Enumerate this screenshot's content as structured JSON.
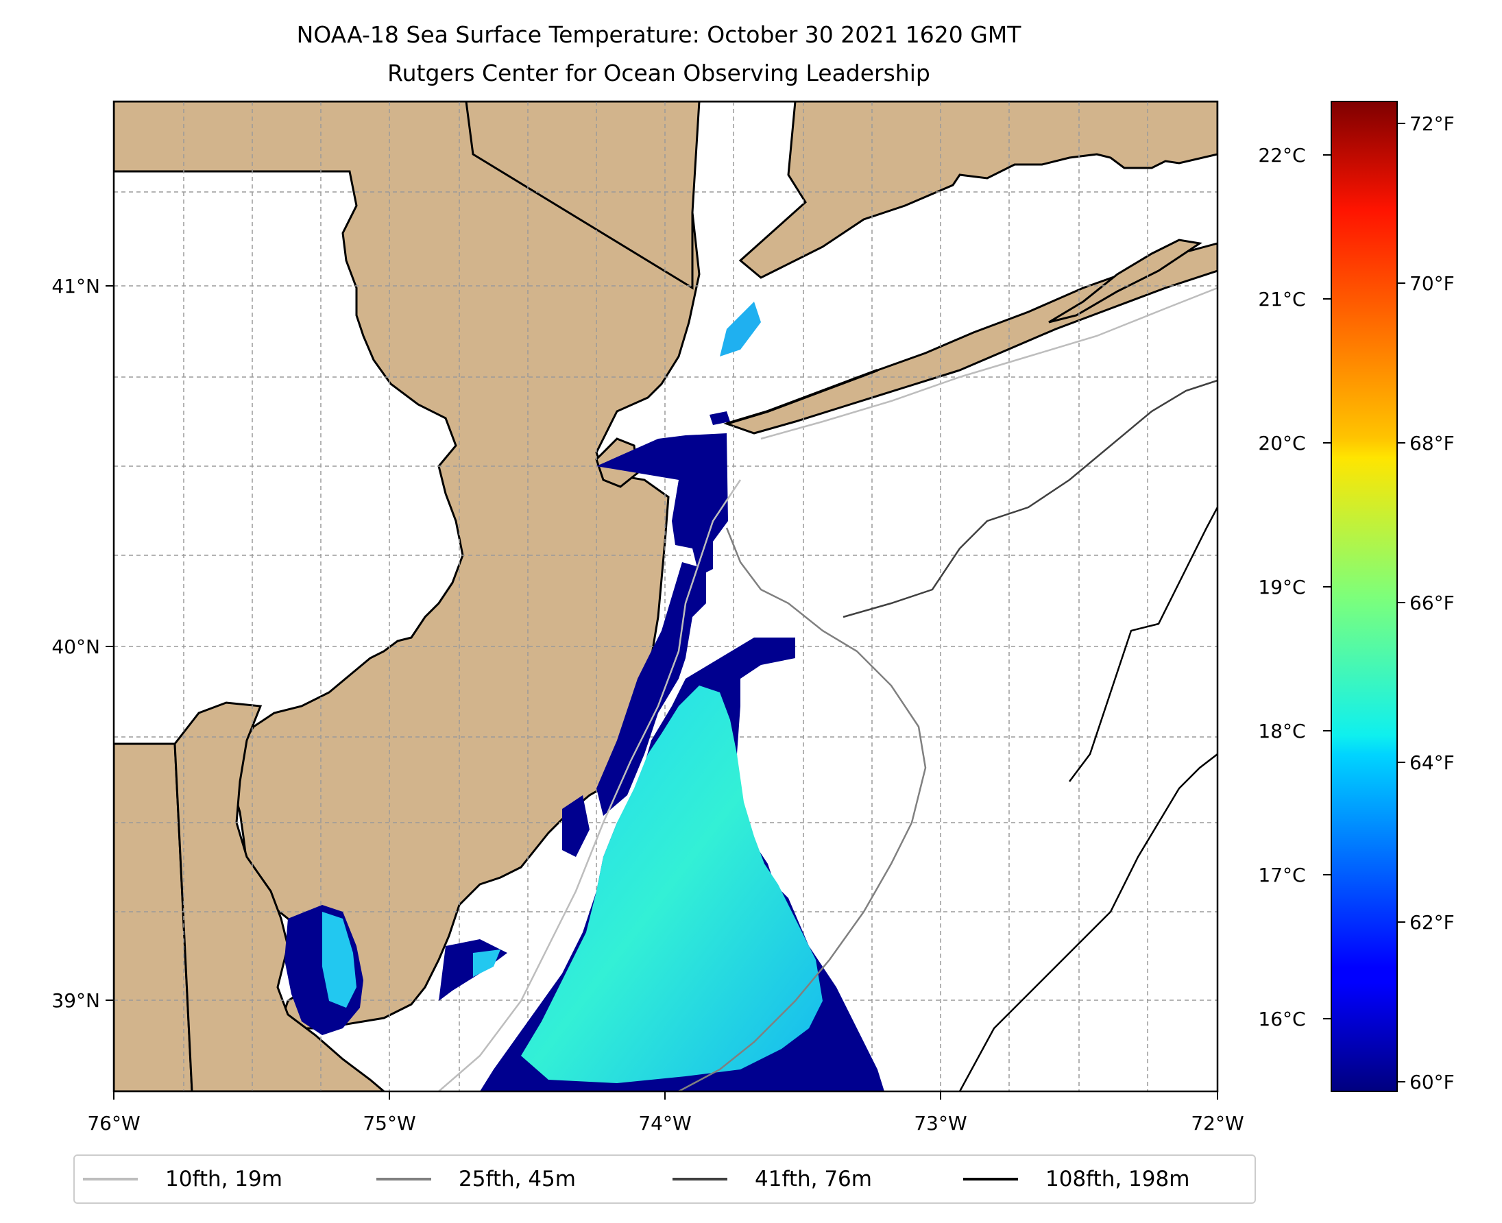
{
  "title": {
    "line1": "NOAA-18 Sea Surface Temperature: October 30 2021 1620 GMT",
    "line2": "Rutgers Center for Ocean Observing Leadership"
  },
  "map": {
    "lon_range": [
      -76,
      -72
    ],
    "lat_range": [
      38.7,
      41.5
    ],
    "lon_ticks": [
      "76°W",
      "75°W",
      "74°W",
      "73°W",
      "72°W"
    ],
    "lat_ticks": [
      "41°N",
      "40°N",
      "39°N"
    ],
    "land_color": "#d2b48c",
    "grid": "dashed-gray"
  },
  "colorbar": {
    "colormap": "jet",
    "celsius_ticks": [
      "22°C",
      "21°C",
      "20°C",
      "19°C",
      "18°C",
      "17°C",
      "16°C"
    ],
    "fahrenheit_ticks": [
      "72°F",
      "70°F",
      "68°F",
      "66°F",
      "64°F",
      "62°F",
      "60°F"
    ]
  },
  "legend": {
    "items": [
      {
        "label": "10fth, 19m",
        "color": "#bdbdbd"
      },
      {
        "label": "25fth, 45m",
        "color": "#808080"
      },
      {
        "label": "41fth, 76m",
        "color": "#404040"
      },
      {
        "label": "108fth, 198m",
        "color": "#000000"
      }
    ]
  }
}
